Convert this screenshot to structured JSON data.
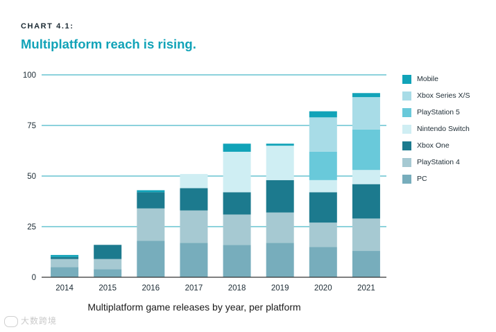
{
  "header": {
    "eyebrow": "CHART 4.1:",
    "title": "Multiplatform reach is rising."
  },
  "caption": "Multiplatform game releases by year, per platform",
  "watermark": "大数跨境",
  "colors": {
    "PC": "#77adbc",
    "PlayStation 4": "#a6c9d2",
    "Xbox One": "#1c7a8e",
    "Nintendo Switch": "#cfeef3",
    "PlayStation 5": "#69c9da",
    "Xbox Series X/S": "#a8dce7",
    "Mobile": "#11a3b8",
    "gridline": "#1aa6ba",
    "axis": "#333333"
  },
  "legend_order": [
    "Mobile",
    "Xbox Series X/S",
    "PlayStation 5",
    "Nintendo Switch",
    "Xbox One",
    "PlayStation 4",
    "PC"
  ],
  "chart_data": {
    "type": "bar",
    "stacked": true,
    "title": "Multiplatform reach is rising.",
    "xlabel": "Multiplatform game releases by year, per platform",
    "ylabel": "",
    "ylim": [
      0,
      100
    ],
    "yticks": [
      0,
      25,
      50,
      75,
      100
    ],
    "legend_position": "right",
    "categories": [
      "2014",
      "2015",
      "2016",
      "2017",
      "2018",
      "2019",
      "2020",
      "2021"
    ],
    "series": [
      {
        "name": "PC",
        "values": [
          5,
          4,
          18,
          17,
          16,
          17,
          15,
          13
        ]
      },
      {
        "name": "PlayStation 4",
        "values": [
          4,
          5,
          16,
          16,
          15,
          15,
          12,
          16
        ]
      },
      {
        "name": "Xbox One",
        "values": [
          1,
          7,
          8,
          11,
          11,
          16,
          15,
          17
        ]
      },
      {
        "name": "Nintendo Switch",
        "values": [
          0,
          0,
          0,
          7,
          20,
          17,
          6,
          7
        ]
      },
      {
        "name": "PlayStation 5",
        "values": [
          0,
          0,
          0,
          0,
          0,
          0,
          14,
          20
        ]
      },
      {
        "name": "Xbox Series X/S",
        "values": [
          0,
          0,
          0,
          0,
          0,
          0,
          17,
          16
        ]
      },
      {
        "name": "Mobile",
        "values": [
          1,
          0,
          1,
          0,
          4,
          1,
          3,
          2
        ]
      }
    ]
  }
}
